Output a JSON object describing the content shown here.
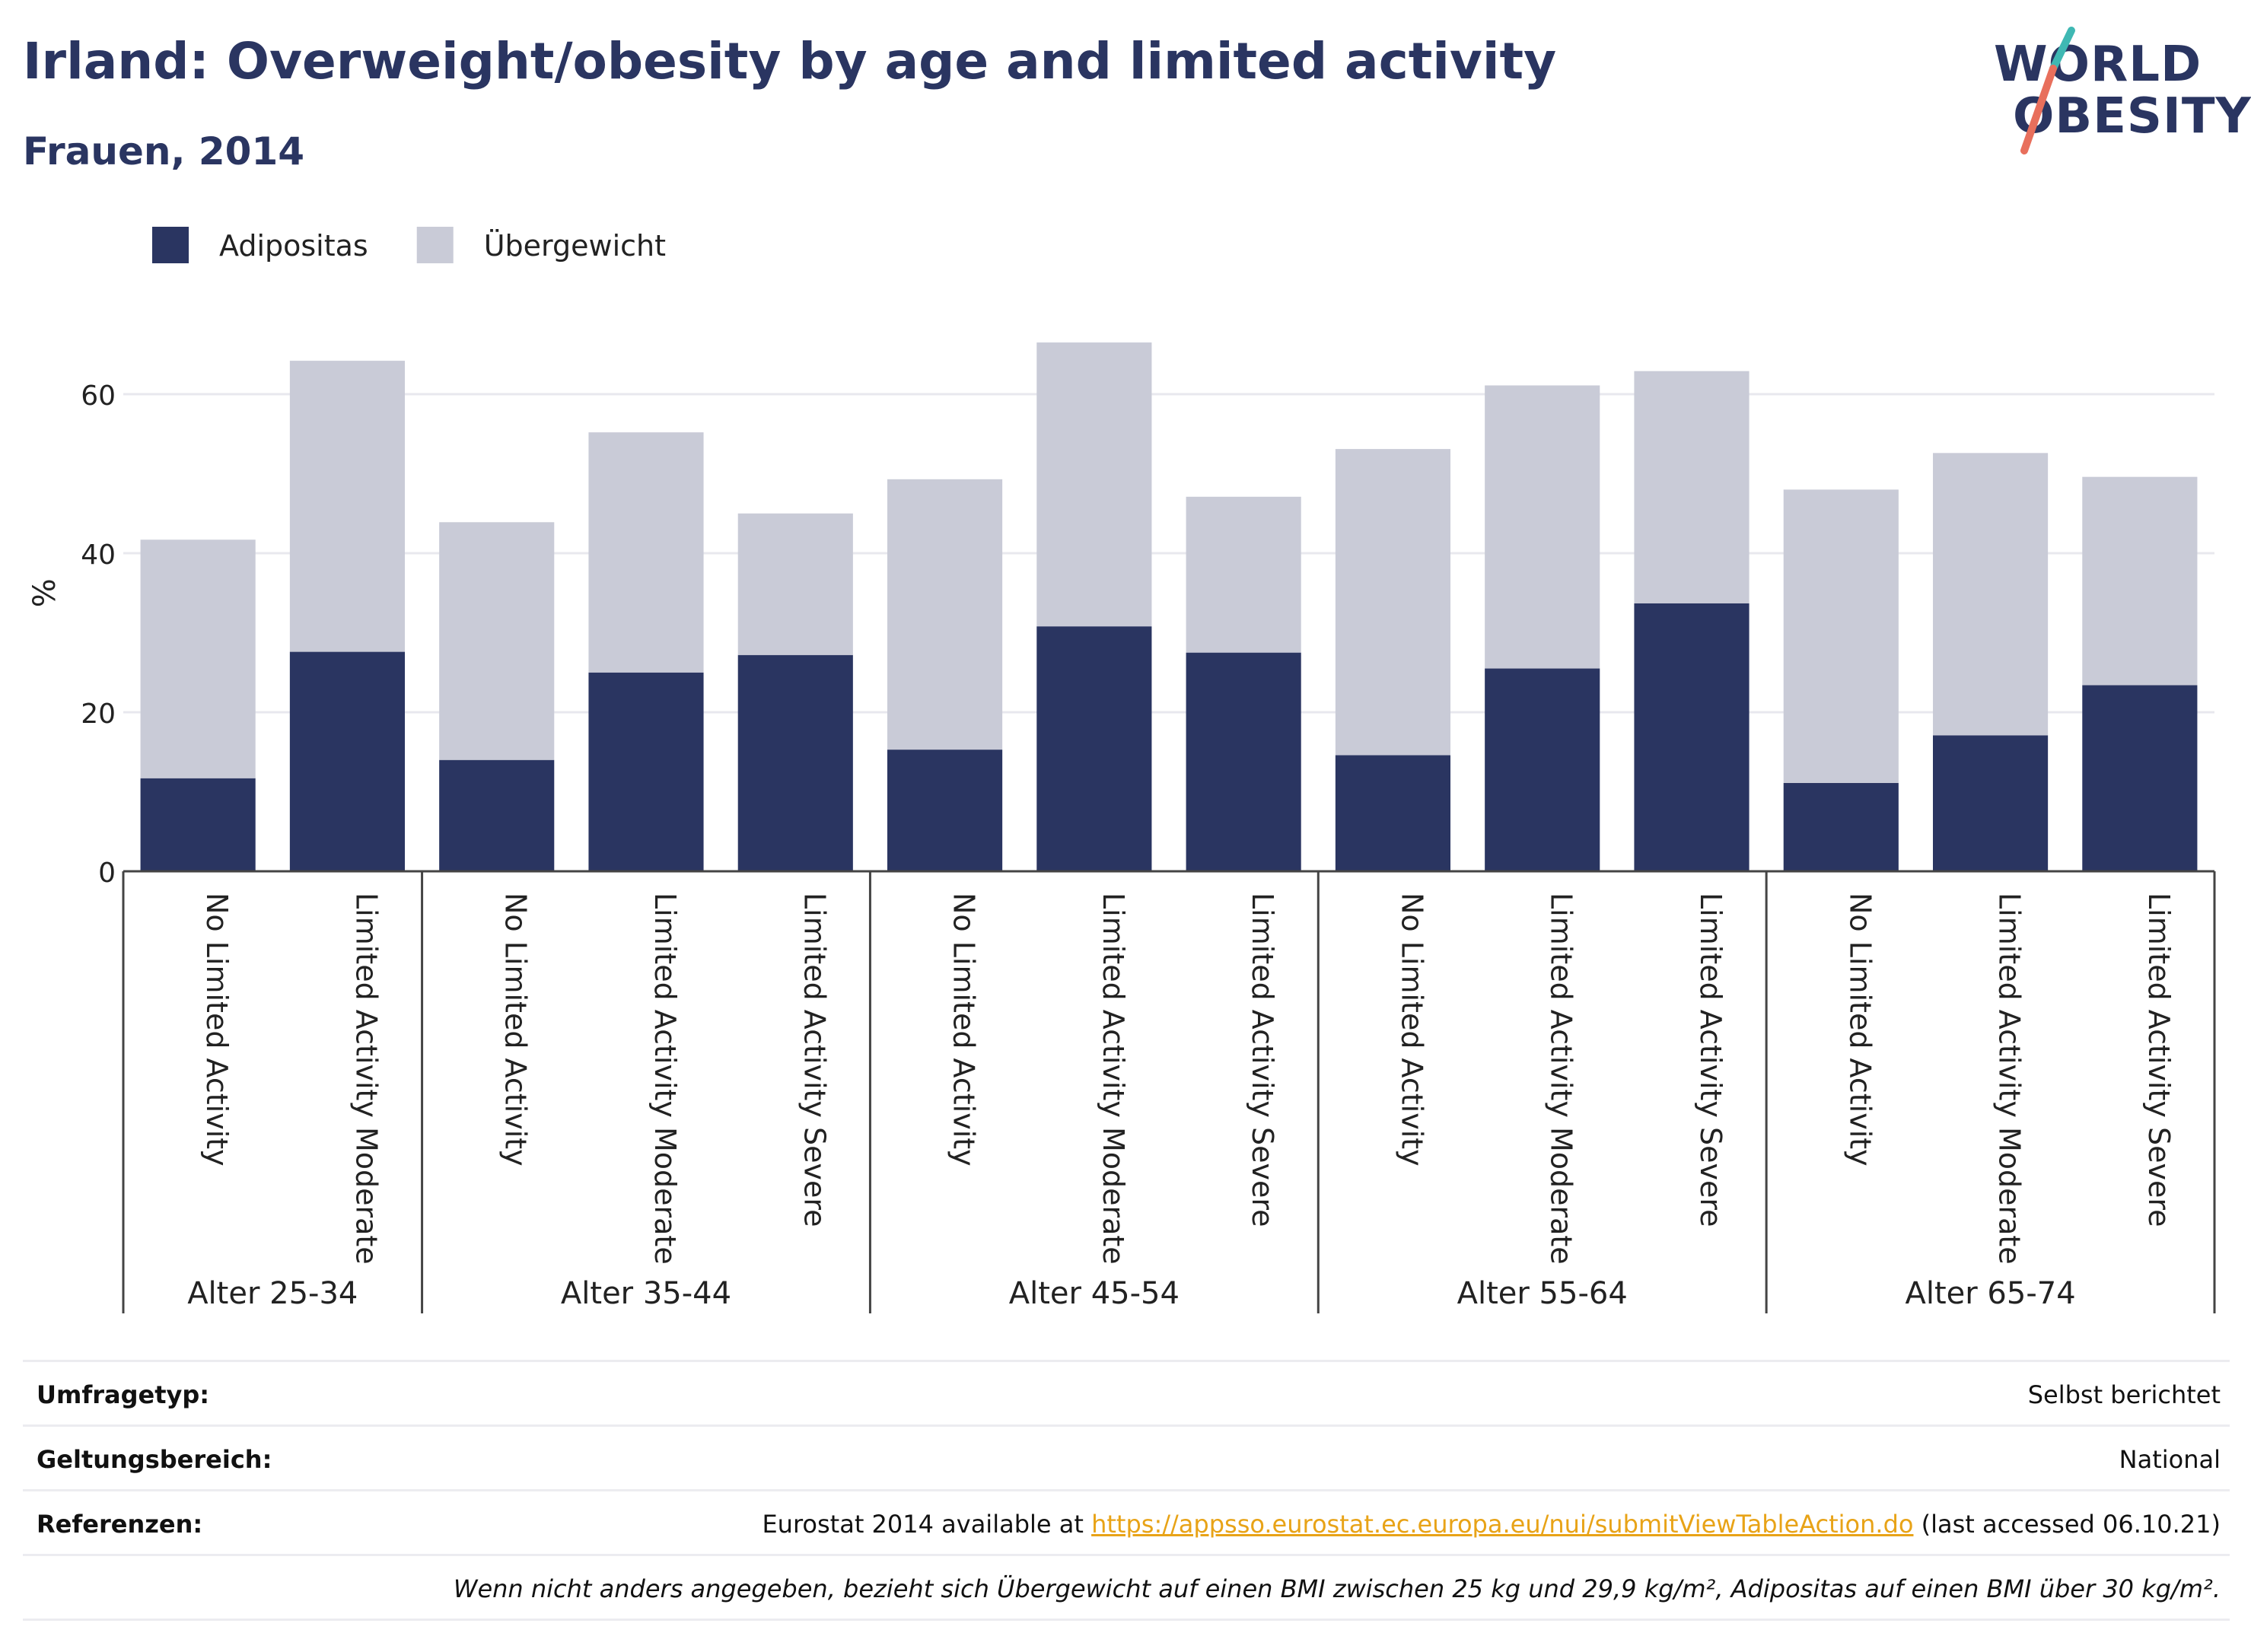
{
  "header": {
    "title": "Irland: Overweight/obesity by age and limited activity",
    "subtitle": "Frauen, 2014"
  },
  "logo": {
    "line1": "WORLD",
    "line2": "OBESITY",
    "colors": {
      "navy": "#2a3561",
      "teal": "#3fb8b3",
      "coral": "#e86f5c"
    }
  },
  "chart_data": {
    "type": "bar",
    "stacked": true,
    "ylabel": "%",
    "ylim": [
      0,
      70
    ],
    "yticks": [
      0,
      20,
      40,
      60
    ],
    "grid": true,
    "legend_position": "top-left",
    "groups": [
      {
        "label": "Alter 25-34",
        "categories": [
          "No Limited Activity",
          "Limited Activity Moderate"
        ]
      },
      {
        "label": "Alter 35-44",
        "categories": [
          "No Limited Activity",
          "Limited Activity Moderate",
          "Limited Activity Severe"
        ]
      },
      {
        "label": "Alter 45-54",
        "categories": [
          "No Limited Activity",
          "Limited Activity Moderate",
          "Limited Activity Severe"
        ]
      },
      {
        "label": "Alter 55-64",
        "categories": [
          "No Limited Activity",
          "Limited Activity Moderate",
          "Limited Activity Severe"
        ]
      },
      {
        "label": "Alter 65-74",
        "categories": [
          "No Limited Activity",
          "Limited Activity Moderate",
          "Limited Activity Severe"
        ]
      }
    ],
    "series": [
      {
        "name": "Adipositas",
        "color": "#2a3561",
        "values": [
          11.7,
          27.6,
          14.0,
          25.0,
          27.2,
          15.3,
          30.8,
          27.5,
          14.6,
          25.5,
          33.7,
          11.1,
          17.1,
          23.4
        ]
      },
      {
        "name": "Übergewicht",
        "color": "#c9cbd7",
        "values": [
          30.0,
          36.6,
          29.9,
          30.2,
          17.8,
          34.0,
          35.7,
          19.6,
          38.5,
          35.6,
          29.2,
          36.9,
          35.5,
          26.2
        ]
      }
    ]
  },
  "footer": {
    "rows": [
      {
        "label": "Umfragetyp:",
        "value": "Selbst berichtet"
      },
      {
        "label": "Geltungsbereich:",
        "value": "National"
      },
      {
        "label": "Referenzen:",
        "value_prefix": "Eurostat 2014 available at ",
        "link": "https://appsso.eurostat.ec.europa.eu/nui/submitViewTableAction.do",
        "value_suffix": " (last accessed 06.10.21)"
      }
    ],
    "note": "Wenn nicht anders angegeben, bezieht sich Übergewicht auf einen BMI zwischen 25 kg und 29,9 kg/m², Adipositas auf einen BMI über 30 kg/m²."
  }
}
